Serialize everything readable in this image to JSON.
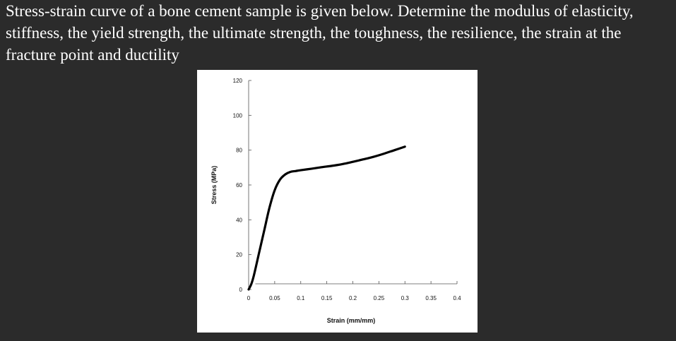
{
  "question": {
    "text": "Stress-strain curve of a bone cement sample is given below. Determine the modulus of elasticity, stiffness, the yield strength, the ultimate strength, the toughness, the resilience, the strain at the fracture point and ductility"
  },
  "chart_data": {
    "type": "line",
    "title": "",
    "xlabel": "Strain (mm/mm)",
    "ylabel": "Stress (MPa)",
    "xlim": [
      0,
      0.4
    ],
    "ylim": [
      0,
      120
    ],
    "x_ticks": [
      0,
      0.05,
      0.1,
      0.15,
      0.2,
      0.25,
      0.3,
      0.35,
      0.4
    ],
    "x_tick_labels": [
      "0",
      "0.05",
      "0.1",
      "0.15",
      "0.2",
      "0.25",
      "0.3",
      "0.35",
      "0.4"
    ],
    "y_ticks": [
      0,
      20,
      40,
      60,
      80,
      100,
      120
    ],
    "y_tick_labels": [
      "0",
      "20",
      "40",
      "60",
      "80",
      "100",
      "120"
    ],
    "grid": false,
    "legend": "none",
    "line_color": "#000000",
    "series": [
      {
        "x": [
          0,
          0.005,
          0.01,
          0.02,
          0.03,
          0.04,
          0.05,
          0.06,
          0.07,
          0.08,
          0.09,
          0.1,
          0.12,
          0.14,
          0.16,
          0.18,
          0.2,
          0.22,
          0.24,
          0.26,
          0.28,
          0.3
        ],
        "y": [
          0,
          3,
          8,
          21,
          34,
          47,
          57,
          63,
          66,
          67.5,
          68,
          68.5,
          69.3,
          70.2,
          71,
          72,
          73.3,
          74.7,
          76.2,
          78,
          80,
          82
        ]
      }
    ]
  }
}
